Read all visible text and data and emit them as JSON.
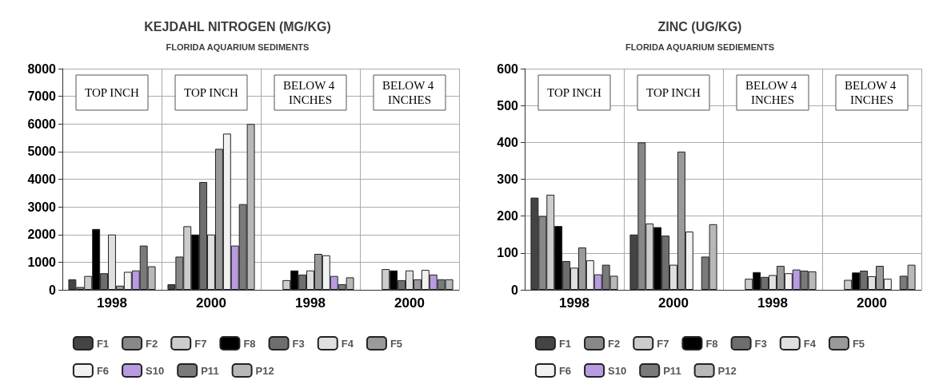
{
  "chart_data": [
    {
      "type": "bar",
      "title": "KEJDAHL NITROGEN (MG/KG)",
      "subtitle": "FLORIDA AQUARIUM SEDIMENTS",
      "categories": [
        "1998",
        "2000",
        "1998",
        "2000"
      ],
      "annotations": [
        "TOP INCH",
        "TOP INCH",
        "BELOW 4 INCHES",
        "BELOW 4 INCHES"
      ],
      "ylim": [
        0,
        8000
      ],
      "yticks": [
        0,
        1000,
        2000,
        3000,
        4000,
        5000,
        6000,
        7000,
        8000
      ],
      "grid": true,
      "legend": "bottom",
      "series": [
        {
          "name": "F1",
          "color": "#444444",
          "values": [
            380,
            200,
            null,
            null
          ]
        },
        {
          "name": "F2",
          "color": "#888888",
          "values": [
            100,
            1200,
            null,
            null
          ]
        },
        {
          "name": "F7",
          "color": "#cccccc",
          "values": [
            500,
            2300,
            350,
            750
          ]
        },
        {
          "name": "F8",
          "color": "#000000",
          "values": [
            2200,
            2000,
            700,
            700
          ]
        },
        {
          "name": "F3",
          "color": "#6e6e6e",
          "values": [
            600,
            3900,
            550,
            350
          ]
        },
        {
          "name": "F4",
          "color": "#e0e0e0",
          "values": [
            2000,
            2000,
            700,
            700
          ]
        },
        {
          "name": "F5",
          "color": "#9a9a9a",
          "values": [
            150,
            5100,
            1300,
            380
          ]
        },
        {
          "name": "F6",
          "color": "#f2f2f2",
          "values": [
            650,
            5650,
            1250,
            720
          ]
        },
        {
          "name": "S10",
          "color": "#b89be0",
          "values": [
            700,
            1600,
            500,
            550
          ]
        },
        {
          "name": "P11",
          "color": "#7a7a7a",
          "values": [
            1600,
            3100,
            200,
            380
          ]
        },
        {
          "name": "P12",
          "color": "#b8b8b8",
          "values": [
            850,
            6000,
            450,
            380
          ]
        }
      ]
    },
    {
      "type": "bar",
      "title": "ZINC (UG/KG)",
      "subtitle": "FLORIDA AQUARIUM SEDIEMENTS",
      "categories": [
        "1998",
        "2000",
        "1998",
        "2000"
      ],
      "annotations": [
        "TOP INCH",
        "TOP INCH",
        "BELOW 4 INCHES",
        "BELOW 4 INCHES"
      ],
      "ylim": [
        0,
        600
      ],
      "yticks": [
        0,
        100,
        200,
        300,
        400,
        500,
        600
      ],
      "grid": true,
      "legend": "bottom",
      "series": [
        {
          "name": "F1",
          "color": "#444444",
          "values": [
            250,
            150,
            null,
            null
          ]
        },
        {
          "name": "F2",
          "color": "#888888",
          "values": [
            200,
            400,
            null,
            null
          ]
        },
        {
          "name": "F7",
          "color": "#cccccc",
          "values": [
            258,
            180,
            30,
            27
          ]
        },
        {
          "name": "F8",
          "color": "#000000",
          "values": [
            173,
            170,
            48,
            47
          ]
        },
        {
          "name": "F3",
          "color": "#6e6e6e",
          "values": [
            78,
            147,
            35,
            52
          ]
        },
        {
          "name": "F4",
          "color": "#e0e0e0",
          "values": [
            60,
            68,
            40,
            37
          ]
        },
        {
          "name": "F5",
          "color": "#9a9a9a",
          "values": [
            115,
            375,
            65,
            65
          ]
        },
        {
          "name": "F6",
          "color": "#f2f2f2",
          "values": [
            80,
            158,
            45,
            30
          ]
        },
        {
          "name": "S10",
          "color": "#b89be0",
          "values": [
            42,
            null,
            55,
            null
          ]
        },
        {
          "name": "P11",
          "color": "#7a7a7a",
          "values": [
            68,
            90,
            52,
            38
          ]
        },
        {
          "name": "P12",
          "color": "#b8b8b8",
          "values": [
            38,
            178,
            50,
            68
          ]
        }
      ]
    }
  ]
}
